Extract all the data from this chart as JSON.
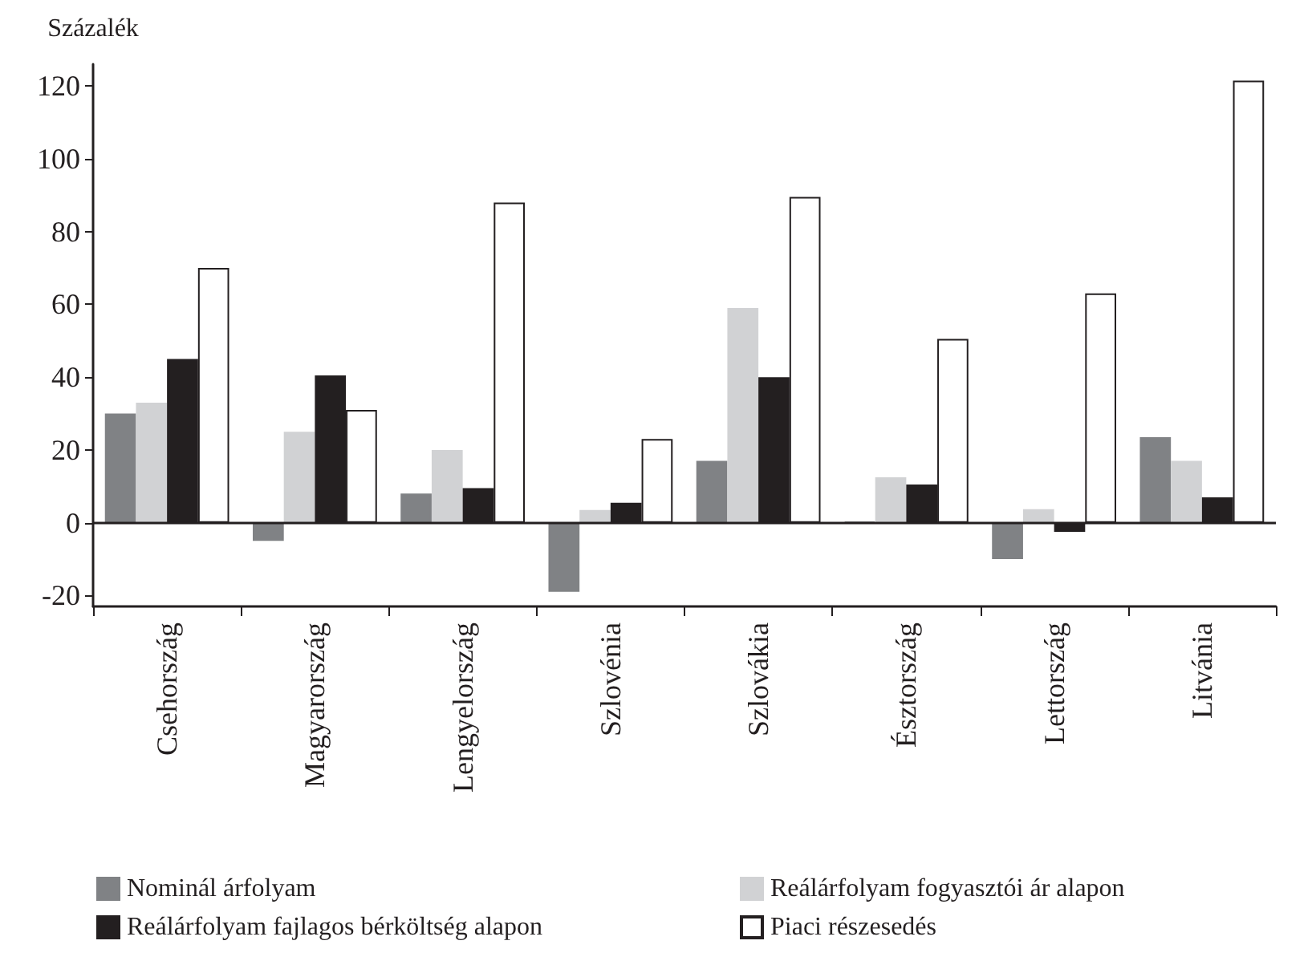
{
  "chart_data": {
    "type": "bar",
    "ylabel": "Százalék",
    "categories": [
      "Csehország",
      "Magyarország",
      "Lengyelország",
      "Szlovénia",
      "Szlovákia",
      "Észtország",
      "Lettország",
      "Litvánia"
    ],
    "series": [
      {
        "name": "Nominál árfolyam",
        "color": "#808285",
        "values": [
          30,
          -5,
          8,
          -19,
          17,
          0.3,
          -10,
          23.5
        ]
      },
      {
        "name": "Reálárfolyam fogyasztói ár alapon",
        "color": "#d1d2d4",
        "values": [
          33,
          25,
          20,
          3.5,
          59,
          12.5,
          3.7,
          17
        ]
      },
      {
        "name": "Reálárfolyam fajlagos bérköltség alapon",
        "color": "#231f20",
        "values": [
          45,
          40.5,
          9.5,
          5.5,
          40,
          10.5,
          -2.5,
          7
        ]
      },
      {
        "name": "Piaci részesedés",
        "color": "#ffffff",
        "values": [
          70,
          31,
          88,
          23,
          89.5,
          50.5,
          63,
          121.5
        ]
      }
    ],
    "ylim": [
      -23,
      126
    ],
    "yticks": [
      -20,
      0,
      20,
      40,
      60,
      80,
      100,
      120
    ],
    "ref_lines": [
      {
        "axis": "y",
        "value": 0
      }
    ],
    "grid": false,
    "legend": "bottom"
  }
}
